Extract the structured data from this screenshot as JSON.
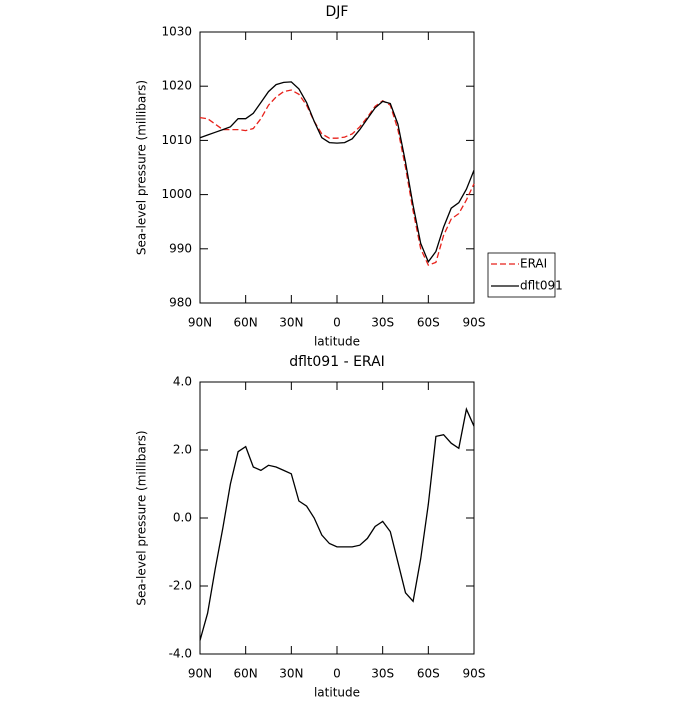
{
  "chart_data": [
    {
      "type": "line",
      "title": "DJF",
      "x_label": "latitude",
      "y_label": "Sea-level pressure (millibars)",
      "xlim": [
        90,
        -90
      ],
      "xticks": [
        {
          "value": 90,
          "label": "90N"
        },
        {
          "value": 60,
          "label": "60N"
        },
        {
          "value": 30,
          "label": "30N"
        },
        0,
        {
          "value": -30,
          "label": "30S"
        },
        {
          "value": -60,
          "label": "60S"
        },
        {
          "value": -90,
          "label": "90S"
        }
      ],
      "ylim": [
        980,
        1030
      ],
      "yticks": [
        980,
        990,
        1000,
        1010,
        1020,
        1030
      ],
      "legend": "right",
      "x": [
        90,
        85,
        80,
        75,
        70,
        65,
        60,
        55,
        50,
        45,
        40,
        35,
        30,
        25,
        20,
        15,
        10,
        5,
        0,
        -5,
        -10,
        -15,
        -20,
        -25,
        -30,
        -35,
        -40,
        -45,
        -50,
        -55,
        -60,
        -65,
        -70,
        -75,
        -80,
        -85,
        -90
      ],
      "series": [
        {
          "name": "ERAI",
          "color": "#e8221b",
          "dashed": true,
          "values": [
            1014.2,
            1014,
            1013,
            1012,
            1012,
            1012,
            1011.8,
            1012.2,
            1014,
            1016.5,
            1018,
            1019,
            1019.3,
            1018.5,
            1016.5,
            1013.5,
            1011.2,
            1010.4,
            1010.4,
            1010.6,
            1011.2,
            1012.5,
            1014.3,
            1016.3,
            1017.3,
            1016.5,
            1012,
            1005,
            997,
            990,
            987,
            987.5,
            992.5,
            995.5,
            996.5,
            999,
            1002
          ]
        },
        {
          "name": "dflt091",
          "color": "#000000",
          "dashed": false,
          "values": [
            1010.5,
            1011,
            1011.5,
            1012,
            1012.5,
            1014,
            1014,
            1015,
            1017,
            1019,
            1020.3,
            1020.7,
            1020.8,
            1019.5,
            1017,
            1013.5,
            1010.5,
            1009.6,
            1009.5,
            1009.6,
            1010.3,
            1012,
            1014,
            1016,
            1017.2,
            1016.8,
            1013,
            1006,
            998,
            991,
            987.6,
            989.5,
            994,
            997.5,
            998.5,
            1001,
            1004.5
          ]
        }
      ]
    },
    {
      "type": "line",
      "title": "dflt091 - ERAI",
      "x_label": "latitude",
      "y_label": "Sea-level pressure (millibars)",
      "xlim": [
        90,
        -90
      ],
      "xticks": [
        {
          "value": 90,
          "label": "90N"
        },
        {
          "value": 60,
          "label": "60N"
        },
        {
          "value": 30,
          "label": "30N"
        },
        0,
        {
          "value": -30,
          "label": "30S"
        },
        {
          "value": -60,
          "label": "60S"
        },
        {
          "value": -90,
          "label": "90S"
        }
      ],
      "ylim": [
        -4,
        4
      ],
      "yticks": [
        {
          "value": -4,
          "label": "-4.0"
        },
        {
          "value": -2,
          "label": "-2.0"
        },
        {
          "value": 0,
          "label": "0.0"
        },
        {
          "value": 2,
          "label": "2.0"
        },
        {
          "value": 4,
          "label": "4.0"
        }
      ],
      "x": [
        90,
        85,
        80,
        75,
        70,
        65,
        60,
        55,
        50,
        45,
        40,
        35,
        30,
        25,
        20,
        15,
        10,
        5,
        0,
        -5,
        -10,
        -15,
        -20,
        -25,
        -30,
        -35,
        -40,
        -45,
        -50,
        -55,
        -60,
        -65,
        -70,
        -75,
        -80,
        -85,
        -90
      ],
      "series": [
        {
          "color": "#000000",
          "dashed": false,
          "values": [
            -3.6,
            -2.8,
            -1.5,
            -0.3,
            1.0,
            1.95,
            2.1,
            1.5,
            1.4,
            1.55,
            1.5,
            1.4,
            1.3,
            0.5,
            0.35,
            0.0,
            -0.5,
            -0.75,
            -0.85,
            -0.85,
            -0.85,
            -0.8,
            -0.6,
            -0.25,
            -0.1,
            -0.4,
            -1.3,
            -2.2,
            -2.45,
            -1.2,
            0.4,
            2.4,
            2.45,
            2.2,
            2.05,
            3.2,
            2.7
          ]
        }
      ]
    }
  ]
}
